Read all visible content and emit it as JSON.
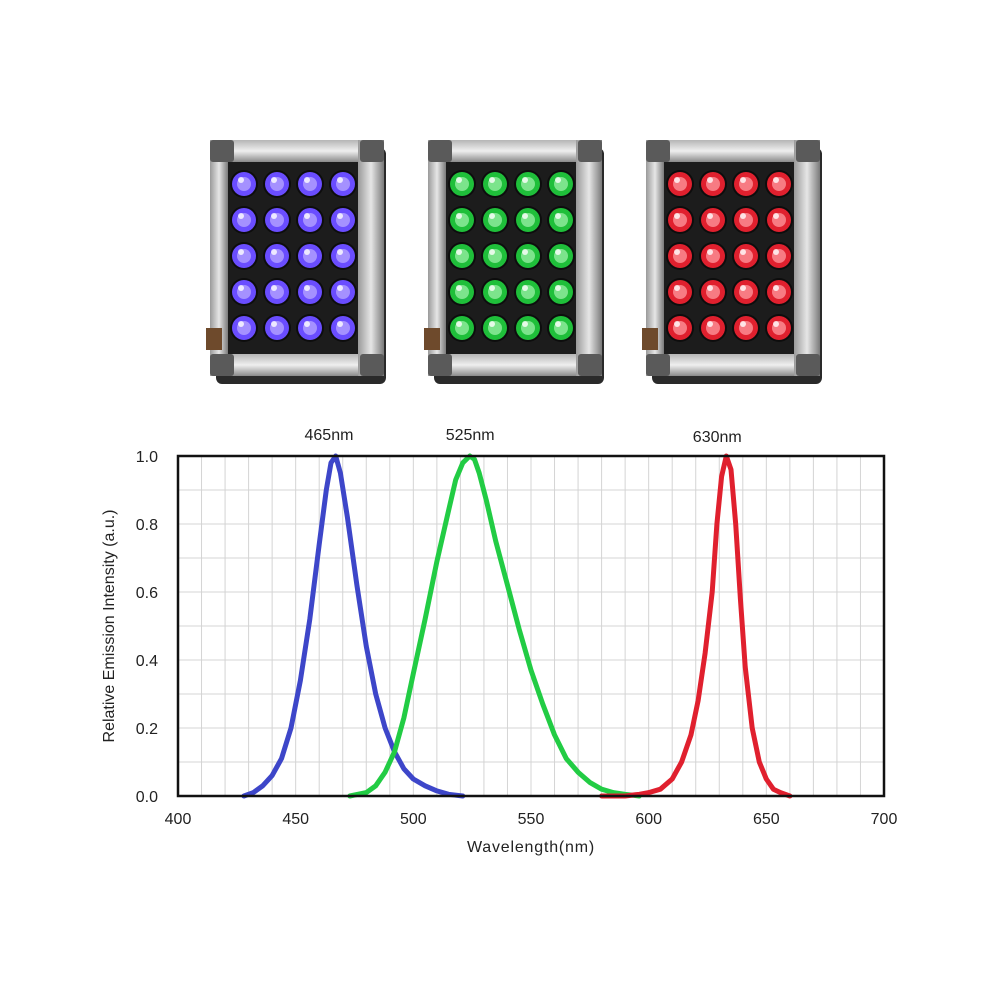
{
  "panels": [
    {
      "name": "blue-led-panel",
      "color": "#6a4dff",
      "glow": "#b9a8ff"
    },
    {
      "name": "green-led-panel",
      "color": "#1fbf3a",
      "glow": "#9cf0a8"
    },
    {
      "name": "red-led-panel",
      "color": "#e0202e",
      "glow": "#ff9aa0"
    }
  ],
  "chart_data": {
    "type": "line",
    "xlabel": "Wavelength(nm)",
    "ylabel": "Relative Emission Intensity (a.u.)",
    "xlim": [
      400,
      700
    ],
    "ylim": [
      0,
      1
    ],
    "xticks": [
      400,
      450,
      500,
      550,
      600,
      650,
      700
    ],
    "yticks": [
      "0.0",
      "0.2",
      "0.4",
      "0.6",
      "0.8",
      "1.0"
    ],
    "grid": true,
    "peak_labels": [
      {
        "text": "465nm",
        "x": 465
      },
      {
        "text": "525nm",
        "x": 525
      },
      {
        "text": "630nm",
        "x": 630
      }
    ],
    "series": [
      {
        "color": "#3d46c9",
        "x": [
          428,
          432,
          436,
          440,
          444,
          448,
          452,
          456,
          460,
          463,
          465,
          467,
          469,
          472,
          476,
          480,
          484,
          488,
          492,
          496,
          500,
          505,
          510,
          515,
          521
        ],
        "y": [
          0.0,
          0.01,
          0.03,
          0.06,
          0.11,
          0.2,
          0.34,
          0.52,
          0.74,
          0.9,
          0.98,
          1.0,
          0.95,
          0.82,
          0.62,
          0.44,
          0.3,
          0.2,
          0.13,
          0.08,
          0.05,
          0.03,
          0.015,
          0.005,
          0.0
        ]
      },
      {
        "color": "#22cc44",
        "x": [
          473,
          480,
          484,
          488,
          492,
          496,
          500,
          505,
          510,
          515,
          518,
          521,
          524,
          526,
          528,
          531,
          535,
          540,
          545,
          550,
          555,
          560,
          565,
          570,
          575,
          580,
          585,
          590,
          596
        ],
        "y": [
          0.0,
          0.01,
          0.03,
          0.07,
          0.13,
          0.23,
          0.36,
          0.52,
          0.69,
          0.84,
          0.93,
          0.98,
          1.0,
          0.99,
          0.95,
          0.87,
          0.75,
          0.62,
          0.49,
          0.37,
          0.27,
          0.18,
          0.11,
          0.07,
          0.04,
          0.02,
          0.01,
          0.005,
          0.0
        ]
      },
      {
        "color": "#e0202e",
        "x": [
          580,
          590,
          596,
          600,
          605,
          610,
          614,
          618,
          621,
          624,
          627,
          629,
          631,
          633,
          635,
          637,
          639,
          641,
          644,
          647,
          650,
          653,
          656,
          660
        ],
        "y": [
          0.0,
          0.0,
          0.005,
          0.01,
          0.02,
          0.05,
          0.1,
          0.18,
          0.28,
          0.42,
          0.6,
          0.8,
          0.94,
          1.0,
          0.96,
          0.8,
          0.58,
          0.38,
          0.2,
          0.1,
          0.05,
          0.02,
          0.01,
          0.0
        ]
      }
    ]
  }
}
